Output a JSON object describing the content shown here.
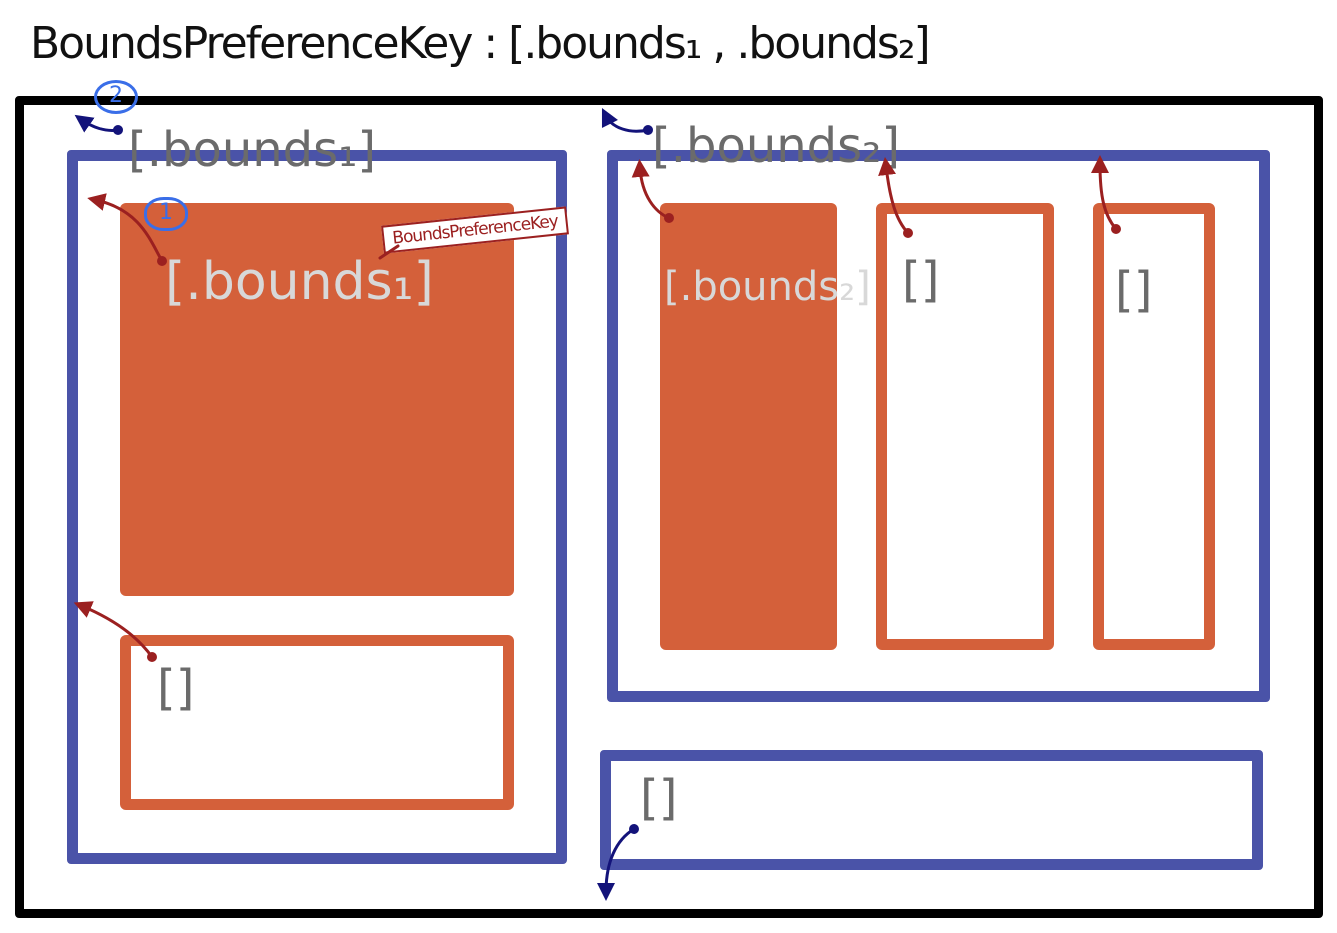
{
  "title": "BoundsPreferenceKey : [.bounds₁ , .bounds₂]",
  "labels": {
    "left_blue": "[.bounds₁]",
    "right_blue": "[.bounds₂]",
    "big_orange": "[.bounds₁]",
    "tall_orange": "[.bounds₂]",
    "empty_left_bottom": "[]",
    "empty_mid": "[]",
    "empty_right": "[]",
    "empty_bottom": "[]",
    "tag": "BoundsPreferenceKey"
  },
  "step_markers": {
    "one": "1",
    "two": "2"
  },
  "colors": {
    "outer": "#000000",
    "container": "#4a53a8",
    "view": "#d4603a",
    "arrow_red": "#9b2020",
    "arrow_navy": "#13137a",
    "marker": "#3a6ee8"
  }
}
